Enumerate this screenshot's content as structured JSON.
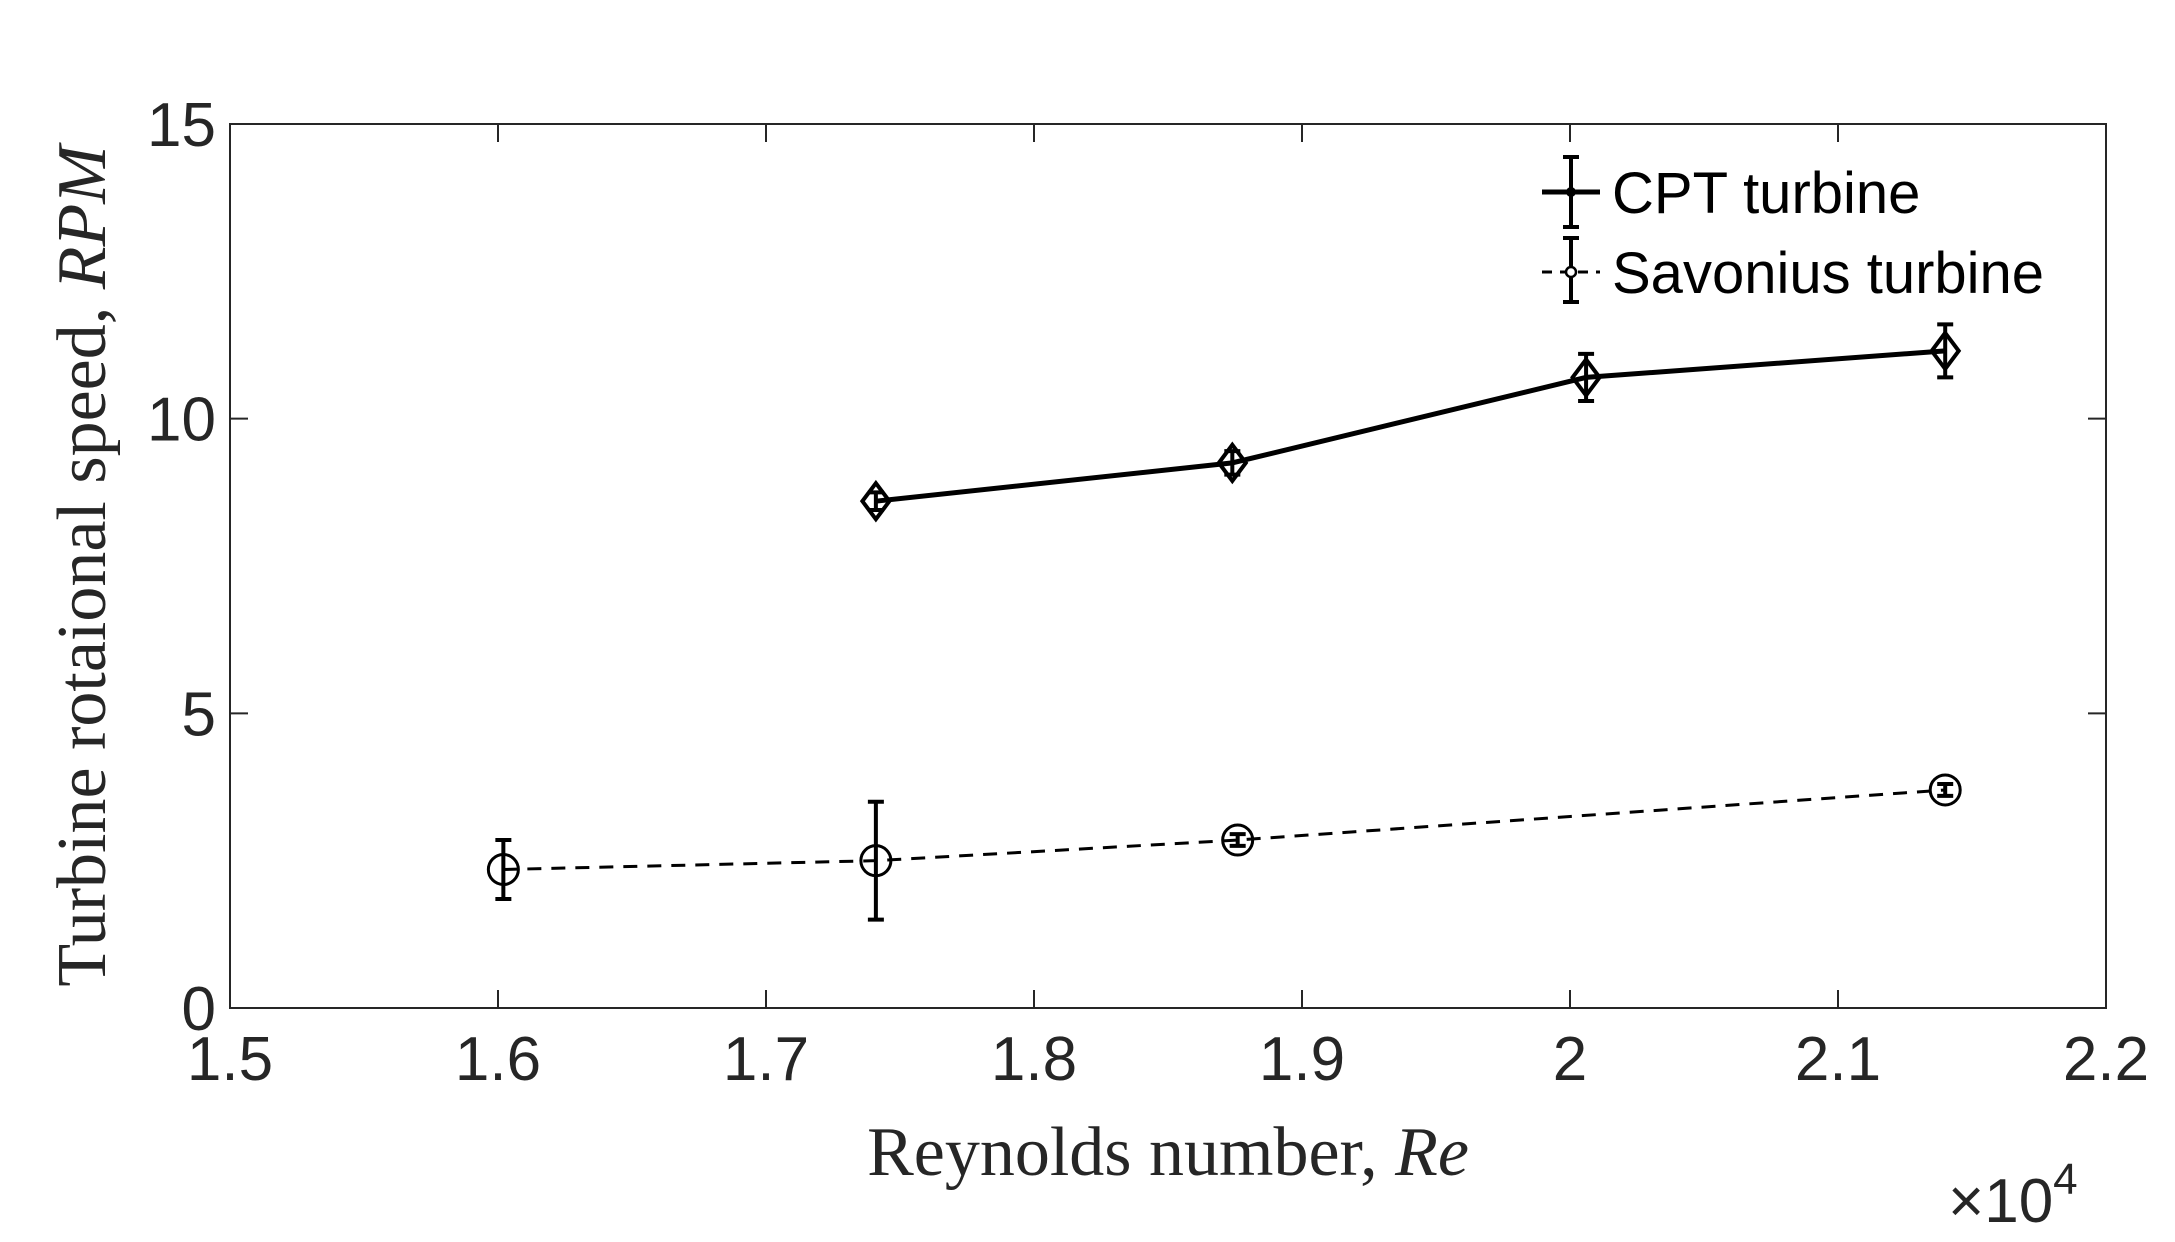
{
  "chart_data": {
    "type": "line",
    "title": "",
    "xlabel": "Reynolds number, ",
    "xlabel_var": "Re",
    "ylabel": "Turbine rotaional speed, ",
    "ylabel_var": "RPM",
    "x_multiplier": "×10",
    "x_multiplier_exp": "4",
    "xlim": [
      1.5,
      2.2
    ],
    "ylim": [
      0,
      15
    ],
    "xticks": [
      1.5,
      1.6,
      1.7,
      1.8,
      1.9,
      2.0,
      2.1,
      2.2
    ],
    "xtick_labels": [
      "1.5",
      "1.6",
      "1.7",
      "1.8",
      "1.9",
      "2",
      "2.1",
      "2.2"
    ],
    "yticks": [
      0,
      5,
      10,
      15
    ],
    "ytick_labels": [
      "0",
      "5",
      "10",
      "15"
    ],
    "grid": false,
    "legend_position": "top-right",
    "series": [
      {
        "name": "CPT turbine",
        "line_style": "solid",
        "marker": "diamond",
        "x": [
          1.741,
          1.874,
          2.006,
          2.14
        ],
        "y": [
          8.6,
          9.25,
          10.7,
          11.15
        ],
        "err": [
          0.15,
          0.2,
          0.4,
          0.45
        ]
      },
      {
        "name": "Savonius turbine",
        "line_style": "dashed",
        "marker": "circle",
        "x": [
          1.602,
          1.741,
          1.876,
          2.14
        ],
        "y": [
          2.35,
          2.5,
          2.85,
          3.7
        ],
        "err": [
          0.5,
          1.0,
          0.1,
          0.1
        ]
      }
    ]
  },
  "colors": {
    "axis": "#262626",
    "series": "#000000"
  }
}
